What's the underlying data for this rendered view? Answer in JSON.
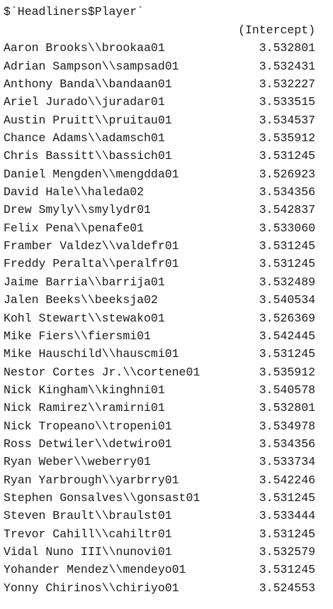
{
  "output": {
    "list_name": "$`Headliners$Player`",
    "column_header": "(Intercept)",
    "rows": [
      {
        "label": "Aaron Brooks\\\\brookaa01",
        "value": "3.532801"
      },
      {
        "label": "Adrian Sampson\\\\sampsad01",
        "value": "3.532431"
      },
      {
        "label": "Anthony Banda\\\\bandaan01",
        "value": "3.532227"
      },
      {
        "label": "Ariel Jurado\\\\juradar01",
        "value": "3.533515"
      },
      {
        "label": "Austin Pruitt\\\\pruitau01",
        "value": "3.534537"
      },
      {
        "label": "Chance Adams\\\\adamsch01",
        "value": "3.535912"
      },
      {
        "label": "Chris Bassitt\\\\bassich01",
        "value": "3.531245"
      },
      {
        "label": "Daniel Mengden\\\\mengdda01",
        "value": "3.526923"
      },
      {
        "label": "David Hale\\\\haleda02",
        "value": "3.534356"
      },
      {
        "label": "Drew Smyly\\\\smylydr01",
        "value": "3.542837"
      },
      {
        "label": "Felix Pena\\\\penafe01",
        "value": "3.533060"
      },
      {
        "label": "Framber Valdez\\\\valdefr01",
        "value": "3.531245"
      },
      {
        "label": "Freddy Peralta\\\\peralfr01",
        "value": "3.531245"
      },
      {
        "label": "Jaime Barria\\\\barrija01",
        "value": "3.532489"
      },
      {
        "label": "Jalen Beeks\\\\beeksja02",
        "value": "3.540534"
      },
      {
        "label": "Kohl Stewart\\\\stewako01",
        "value": "3.526369"
      },
      {
        "label": "Mike Fiers\\\\fiersmi01",
        "value": "3.542445"
      },
      {
        "label": "Mike Hauschild\\\\hauscmi01",
        "value": "3.531245"
      },
      {
        "label": "Nestor Cortes Jr.\\\\cortene01",
        "value": "3.535912"
      },
      {
        "label": "Nick Kingham\\\\kinghni01",
        "value": "3.540578"
      },
      {
        "label": "Nick Ramirez\\\\ramirni01",
        "value": "3.532801"
      },
      {
        "label": "Nick Tropeano\\\\tropeni01",
        "value": "3.534978"
      },
      {
        "label": "Ross Detwiler\\\\detwiro01",
        "value": "3.534356"
      },
      {
        "label": "Ryan Weber\\\\weberry01",
        "value": "3.533734"
      },
      {
        "label": "Ryan Yarbrough\\\\yarbrry01",
        "value": "3.542246"
      },
      {
        "label": "Stephen Gonsalves\\\\gonsast01",
        "value": "3.531245"
      },
      {
        "label": "Steven Brault\\\\braulst01",
        "value": "3.533444"
      },
      {
        "label": "Trevor Cahill\\\\cahiltr01",
        "value": "3.531245"
      },
      {
        "label": "Vidal Nuno III\\\\nunovi01",
        "value": "3.532579"
      },
      {
        "label": "Yohander Mendez\\\\mendeyo01",
        "value": "3.531245"
      },
      {
        "label": "Yonny Chirinos\\\\chiriyo01",
        "value": "3.524553"
      }
    ]
  }
}
